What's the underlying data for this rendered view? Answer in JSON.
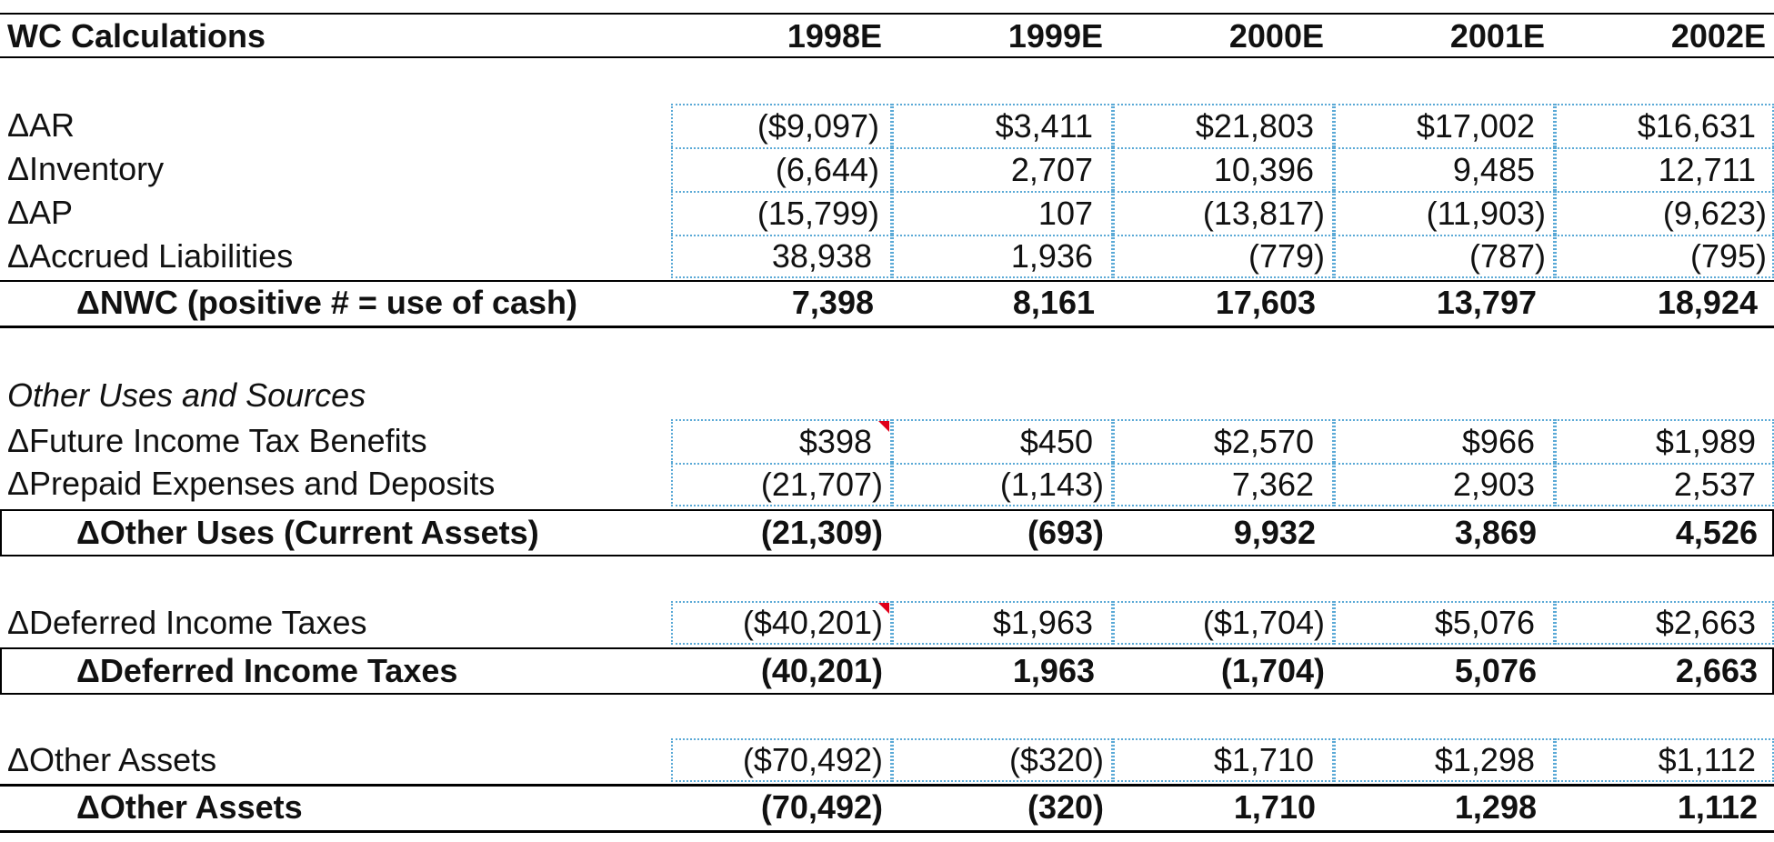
{
  "title": "WC Calculations",
  "years": [
    "1998E",
    "1999E",
    "2000E",
    "2001E",
    "2002E"
  ],
  "nwc_items": [
    {
      "label": "ΔAR",
      "values": [
        "($9,097)",
        "$3,411",
        "$21,803",
        "$17,002",
        "$16,631"
      ]
    },
    {
      "label": "ΔInventory",
      "values": [
        "(6,644)",
        "2,707",
        "10,396",
        "9,485",
        "12,711"
      ]
    },
    {
      "label": "ΔAP",
      "values": [
        "(15,799)",
        "107",
        "(13,817)",
        "(11,903)",
        "(9,623)"
      ]
    },
    {
      "label": "ΔAccrued Liabilities",
      "values": [
        "38,938",
        "1,936",
        "(779)",
        "(787)",
        "(795)"
      ]
    }
  ],
  "nwc_total": {
    "label": "ΔNWC (positive # = use of cash)",
    "values": [
      "7,398",
      "8,161",
      "17,603",
      "13,797",
      "18,924"
    ]
  },
  "other_section_title": "Other Uses and Sources",
  "other_items": [
    {
      "label": "ΔFuture Income Tax Benefits",
      "values": [
        "$398",
        "$450",
        "$2,570",
        "$966",
        "$1,989"
      ]
    },
    {
      "label": "ΔPrepaid Expenses and Deposits",
      "values": [
        "(21,707)",
        "(1,143)",
        "7,362",
        "2,903",
        "2,537"
      ]
    }
  ],
  "other_total": {
    "label": "ΔOther Uses (Current Assets)",
    "values": [
      "(21,309)",
      "(693)",
      "9,932",
      "3,869",
      "4,526"
    ]
  },
  "deferred_item": {
    "label": "ΔDeferred Income Taxes",
    "values": [
      "($40,201)",
      "$1,963",
      "($1,704)",
      "$5,076",
      "$2,663"
    ]
  },
  "deferred_total": {
    "label": "ΔDeferred Income Taxes",
    "values": [
      "(40,201)",
      "1,963",
      "(1,704)",
      "5,076",
      "2,663"
    ]
  },
  "other_assets_item": {
    "label": "ΔOther Assets",
    "values": [
      "($70,492)",
      "($320)",
      "$1,710",
      "$1,298",
      "$1,112"
    ]
  },
  "other_assets_total": {
    "label": "ΔOther Assets",
    "values": [
      "(70,492)",
      "(320)",
      "1,710",
      "1,298",
      "1,112"
    ]
  },
  "colors": {
    "input_border": "#5aa9d6",
    "comment_marker": "#e0001a"
  }
}
